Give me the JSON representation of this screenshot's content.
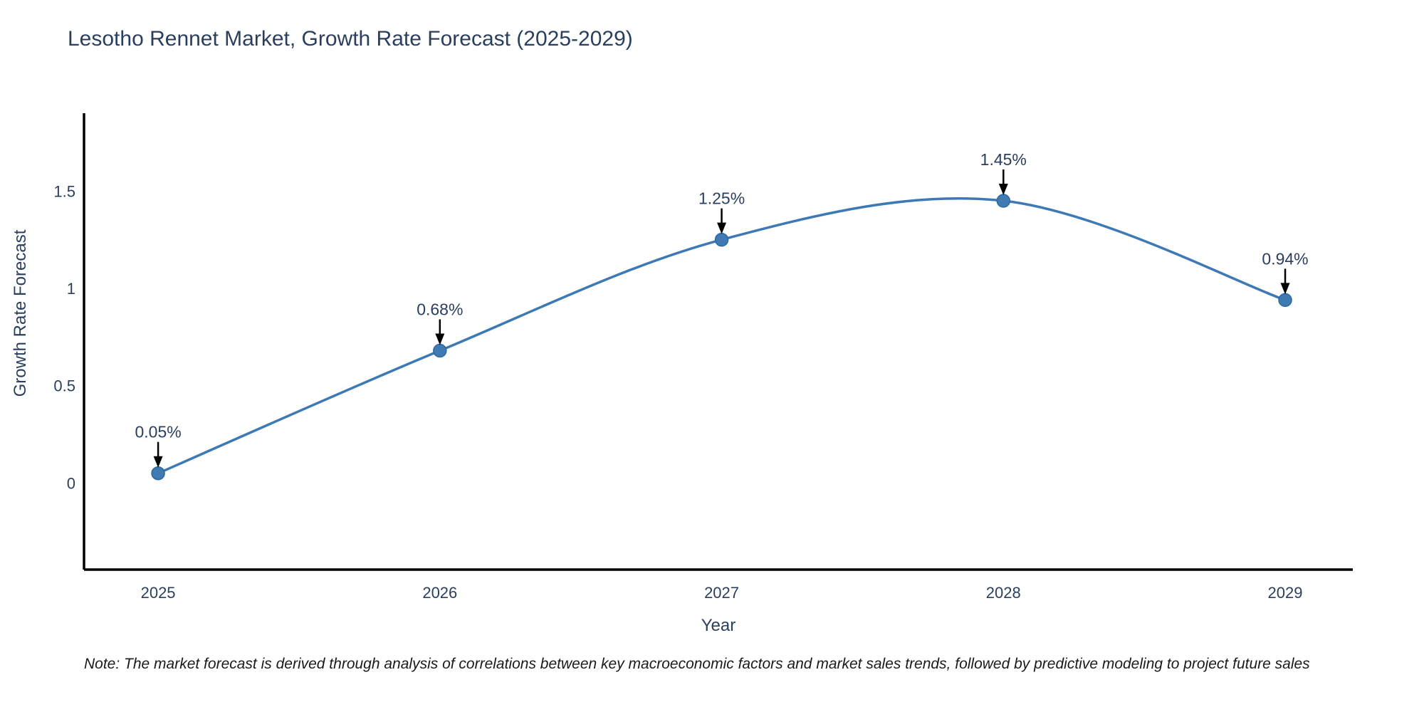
{
  "title": "Lesotho Rennet Market, Growth Rate Forecast (2025-2029)",
  "note": "Note: The market forecast is derived through analysis of correlations between key macroeconomic factors and market sales trends, followed by predictive modeling to project future sales",
  "chart_data": {
    "type": "line",
    "title": "Lesotho Rennet Market, Growth Rate Forecast (2025-2029)",
    "xlabel": "Year",
    "ylabel": "Growth Rate Forecast",
    "x": [
      2025,
      2026,
      2027,
      2028,
      2029
    ],
    "series": [
      {
        "name": "Growth Rate Forecast",
        "values": [
          0.05,
          0.68,
          1.25,
          1.45,
          0.94
        ]
      }
    ],
    "point_labels": [
      "0.05%",
      "0.68%",
      "1.25%",
      "1.45%",
      "0.94%"
    ],
    "xticks": [
      "2025",
      "2026",
      "2027",
      "2028",
      "2029"
    ],
    "yticks": [
      0,
      0.5,
      1,
      1.5
    ],
    "xlim": [
      2024.737,
      2029.24
    ],
    "ylim": [
      -0.445,
      1.9
    ],
    "line_shape": "spline",
    "grid": false,
    "legend": "none",
    "colors": {
      "line": "#3d79b4",
      "marker_fill": "#3f7ab3",
      "marker_edge": "#2d69a1",
      "axis": "#000000",
      "text": "#2a3f5f",
      "annotation_arrow": "#000000"
    }
  }
}
